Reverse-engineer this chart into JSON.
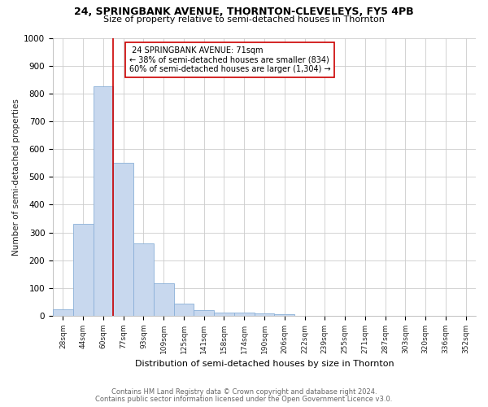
{
  "title1": "24, SPRINGBANK AVENUE, THORNTON-CLEVELEYS, FY5 4PB",
  "title2": "Size of property relative to semi-detached houses in Thornton",
  "xlabel": "Distribution of semi-detached houses by size in Thornton",
  "ylabel": "Number of semi-detached properties",
  "categories": [
    "28sqm",
    "44sqm",
    "60sqm",
    "77sqm",
    "93sqm",
    "109sqm",
    "125sqm",
    "141sqm",
    "158sqm",
    "174sqm",
    "190sqm",
    "206sqm",
    "222sqm",
    "239sqm",
    "255sqm",
    "271sqm",
    "287sqm",
    "303sqm",
    "320sqm",
    "336sqm",
    "352sqm"
  ],
  "values": [
    25,
    330,
    825,
    550,
    260,
    118,
    43,
    22,
    12,
    12,
    8,
    7,
    0,
    0,
    0,
    0,
    0,
    0,
    0,
    0,
    0
  ],
  "bar_color": "#c8d8ee",
  "bar_edge_color": "#8ab0d8",
  "vline_x_index": 2.5,
  "vline_color": "#cc0000",
  "annotation_box_color": "#cc0000",
  "property_label": "24 SPRINGBANK AVENUE: 71sqm",
  "pct_smaller": 38,
  "count_smaller": 834,
  "pct_larger": 60,
  "count_larger": 1304,
  "footer1": "Contains HM Land Registry data © Crown copyright and database right 2024.",
  "footer2": "Contains public sector information licensed under the Open Government Licence v3.0.",
  "ylim": [
    0,
    1000
  ],
  "bg_color": "#ffffff"
}
